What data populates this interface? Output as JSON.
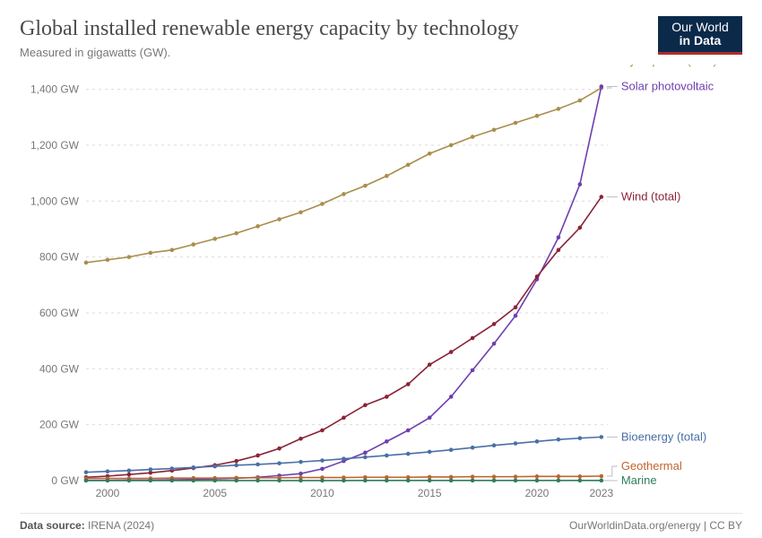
{
  "title": "Global installed renewable energy capacity by technology",
  "subtitle": "Measured in gigawatts (GW).",
  "logo": {
    "line1": "Our World",
    "line2": "in Data"
  },
  "footer": {
    "source_label": "Data source:",
    "source_value": "IRENA (2024)",
    "attribution": "OurWorldinData.org/energy | CC BY"
  },
  "chart": {
    "type": "line",
    "background_color": "#ffffff",
    "grid_color": "#dcdcdc",
    "axis_label_color": "#777777",
    "axis_label_fontsize": 12,
    "series_label_fontsize": 13,
    "marker_radius": 2.3,
    "line_width": 1.6,
    "xlim": [
      1999,
      2023.3
    ],
    "ylim": [
      0,
      1450
    ],
    "xticks": [
      2000,
      2005,
      2010,
      2015,
      2020,
      2023
    ],
    "yticks": [
      0,
      200,
      400,
      600,
      800,
      1000,
      1200,
      1400
    ],
    "ytick_suffix": " GW",
    "years": [
      1999,
      2000,
      2001,
      2002,
      2003,
      2004,
      2005,
      2006,
      2007,
      2008,
      2009,
      2010,
      2011,
      2012,
      2013,
      2014,
      2015,
      2016,
      2017,
      2018,
      2019,
      2020,
      2021,
      2022,
      2023
    ],
    "series": [
      {
        "name": "Hydropower (total)",
        "color": "#a98e4c",
        "values": [
          780,
          790,
          800,
          815,
          825,
          845,
          865,
          885,
          910,
          935,
          960,
          990,
          1025,
          1055,
          1090,
          1130,
          1170,
          1200,
          1230,
          1255,
          1280,
          1305,
          1330,
          1360,
          1405
        ]
      },
      {
        "name": "Solar photovoltaic",
        "color": "#6e3fae",
        "values": [
          1,
          1,
          2,
          2,
          3,
          4,
          6,
          8,
          12,
          18,
          25,
          42,
          70,
          100,
          140,
          180,
          225,
          300,
          395,
          490,
          590,
          720,
          870,
          1060,
          1410
        ]
      },
      {
        "name": "Wind (total)",
        "color": "#8a2438",
        "values": [
          12,
          16,
          22,
          28,
          36,
          45,
          55,
          70,
          90,
          115,
          150,
          180,
          225,
          270,
          300,
          345,
          415,
          460,
          510,
          560,
          620,
          730,
          825,
          905,
          1015
        ]
      },
      {
        "name": "Bioenergy (total)",
        "color": "#4a6fa5",
        "values": [
          30,
          33,
          36,
          40,
          43,
          47,
          51,
          55,
          58,
          62,
          67,
          72,
          78,
          84,
          90,
          96,
          103,
          110,
          118,
          126,
          133,
          140,
          147,
          152,
          156
        ]
      },
      {
        "name": "Geothermal",
        "color": "#c0642e",
        "values": [
          8,
          8,
          8,
          8,
          9,
          9,
          9,
          10,
          10,
          10,
          11,
          11,
          11,
          12,
          12,
          12,
          13,
          13,
          14,
          14,
          14,
          15,
          15,
          15,
          16
        ]
      },
      {
        "name": "Marine",
        "color": "#2e7d5b",
        "values": [
          0.3,
          0.3,
          0.3,
          0.3,
          0.3,
          0.3,
          0.3,
          0.3,
          0.3,
          0.3,
          0.3,
          0.3,
          0.3,
          0.5,
          0.5,
          0.5,
          0.5,
          0.5,
          0.5,
          0.5,
          0.5,
          0.5,
          0.5,
          0.5,
          0.5
        ]
      }
    ]
  }
}
